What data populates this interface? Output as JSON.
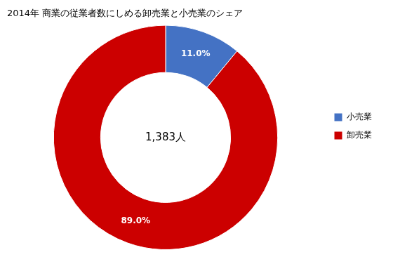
{
  "chart_data": {
    "type": "donut",
    "title": "2014年 商業の従業者数にしめる卸売業と小売業のシェア",
    "categories": [
      "小売業",
      "卸売業"
    ],
    "values": [
      11.0,
      89.0
    ],
    "value_labels": [
      "11.0%",
      "89.0%"
    ],
    "colors": [
      "#4472C4",
      "#CC0000"
    ],
    "annotation": "1,383人",
    "data_labels": true,
    "legend": "right"
  }
}
